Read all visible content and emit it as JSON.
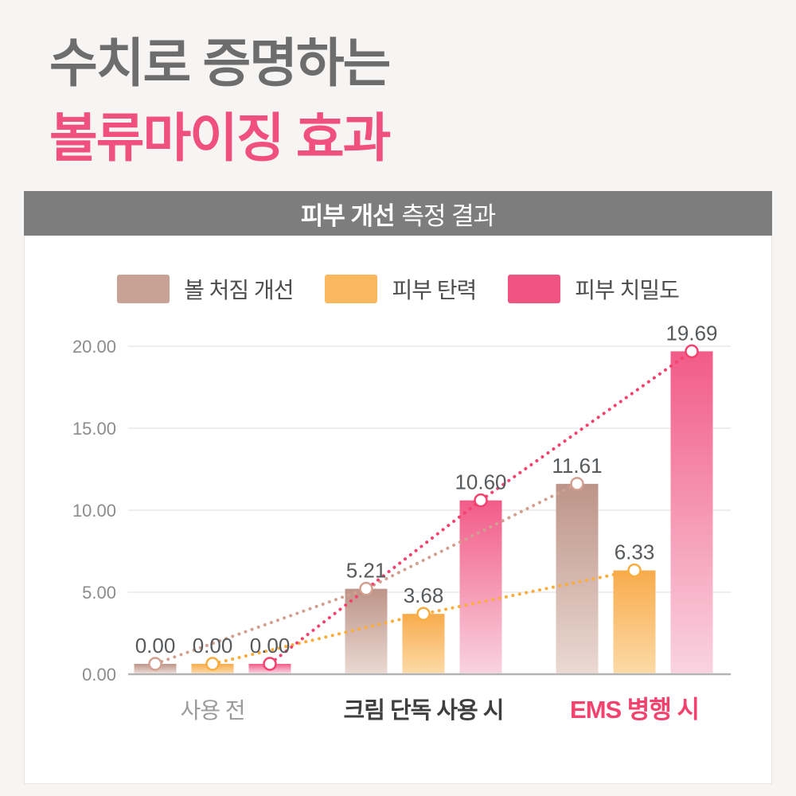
{
  "page": {
    "background": "#f7f5f3"
  },
  "header": {
    "title_line1": "수치로 증명하는",
    "title_line2": "볼류마이징 효과",
    "title_line1_color": "#6d6d6d",
    "title_line2_color": "#f0507d"
  },
  "banner": {
    "title_bold": "피부 개선",
    "title_rest": "측정 결과",
    "background": "#7d7d7d",
    "text_color": "#ffffff"
  },
  "chart_data": {
    "type": "bar",
    "title": "피부 개선 측정 결과",
    "categories": [
      "사용 전",
      "크림 단독 사용 시",
      "EMS 병행 시"
    ],
    "category_colors": [
      "#9b9b9b",
      "#3f3f3f",
      "#f4426e"
    ],
    "category_weights": [
      "400",
      "600",
      "700"
    ],
    "category_font_sizes": [
      28,
      29,
      31
    ],
    "series": [
      {
        "name": "볼 처짐 개선",
        "legend_color": "#c7a295",
        "bar_gradient_top": "#bd9488",
        "bar_gradient_bottom": "#ead9d2",
        "line_color": "#d2a090",
        "values": [
          0.0,
          5.21,
          11.61
        ],
        "labels": [
          "0.00",
          "5.21",
          "11.61"
        ]
      },
      {
        "name": "피부 탄력",
        "legend_color": "#fbb95f",
        "bar_gradient_top": "#f8ab4c",
        "bar_gradient_bottom": "#fcdaa6",
        "line_color": "#f9ad3f",
        "values": [
          0.0,
          3.68,
          6.33
        ],
        "labels": [
          "0.00",
          "3.68",
          "6.33"
        ]
      },
      {
        "name": "피부 치밀도",
        "legend_color": "#ef5480",
        "bar_gradient_top": "#f25b88",
        "bar_gradient_bottom": "#f9d3e0",
        "line_color": "#f4416e",
        "values": [
          0.0,
          10.6,
          19.69
        ],
        "labels": [
          "0.00",
          "10.60",
          "19.69"
        ]
      }
    ],
    "y_ticks": [
      {
        "value": 20,
        "label": "20.00"
      },
      {
        "value": 15,
        "label": "15.00"
      },
      {
        "value": 10,
        "label": "10.00"
      },
      {
        "value": 5,
        "label": "5.00"
      },
      {
        "value": 0,
        "label": "0.00"
      }
    ],
    "ylim": [
      0,
      20
    ],
    "grid": true,
    "legend_position": "top",
    "value_label_color": "#565a5d",
    "tick_label_color": "#8c8c8c",
    "grid_color": "#e9e9e9",
    "axis_color": "#b3b3b3",
    "legend_text_color": "#4d4d4d"
  }
}
